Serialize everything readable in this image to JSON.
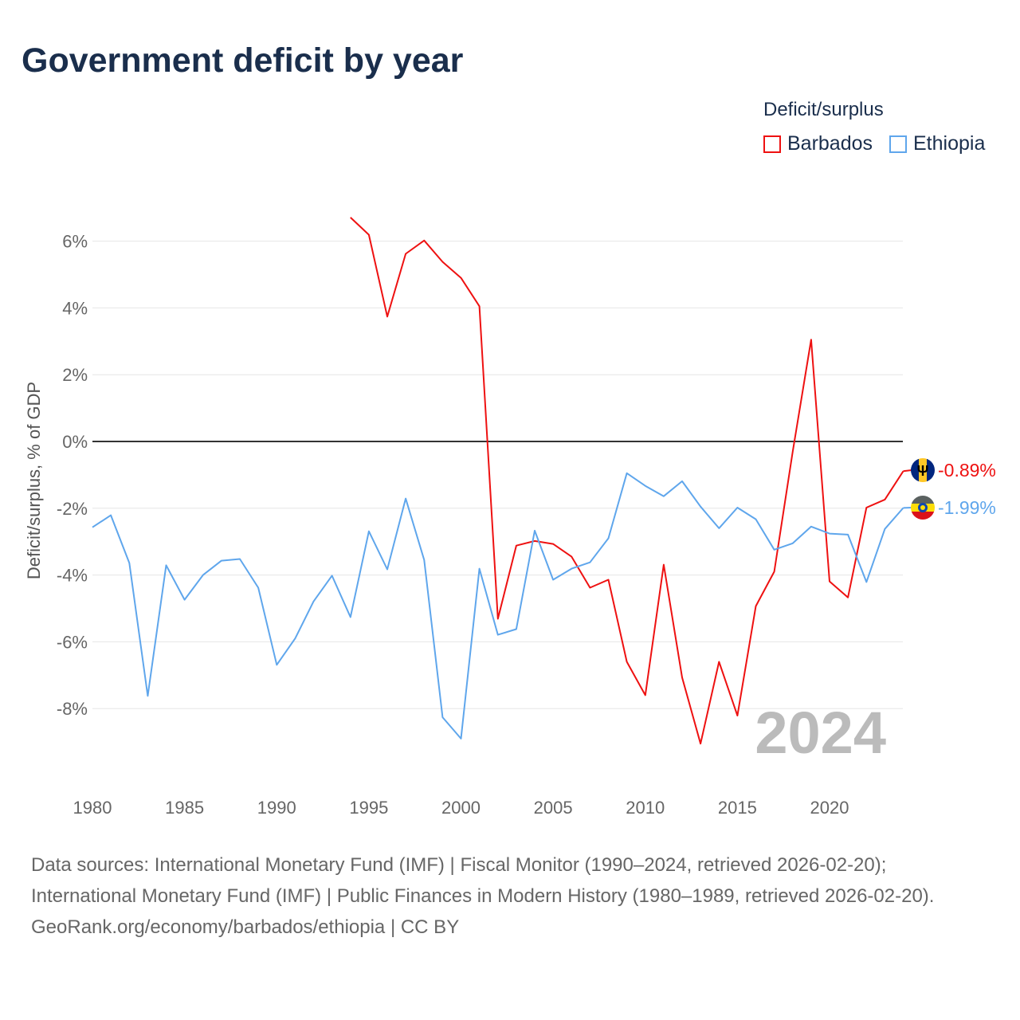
{
  "chart_data": {
    "type": "line",
    "title": "Government deficit by year",
    "ylabel": "Deficit/surplus, % of GDP",
    "xlabel": "",
    "xlim": [
      1980,
      2024
    ],
    "ylim": [
      -10,
      7
    ],
    "x_ticks": [
      1980,
      1985,
      1990,
      1995,
      2000,
      2005,
      2010,
      2015,
      2020
    ],
    "y_ticks": [
      6,
      4,
      2,
      0,
      -2,
      -4,
      -6,
      -8
    ],
    "y_tick_labels": [
      "6%",
      "4%",
      "2%",
      "0%",
      "-2%",
      "-4%",
      "-6%",
      "-8%"
    ],
    "x_tick_labels": [
      "1980",
      "1985",
      "1990",
      "1995",
      "2000",
      "2005",
      "2010",
      "2015",
      "2020"
    ],
    "grid": true,
    "legend_title": "Deficit/surplus",
    "legend_position": "top-right",
    "year_watermark": "2024",
    "series": [
      {
        "name": "Barbados",
        "color": "#ee1111",
        "end_label": "-0.89%",
        "start_year": 1994,
        "values": [
          6.71,
          6.19,
          3.74,
          5.62,
          6.02,
          5.38,
          4.9,
          4.05,
          -5.31,
          -3.12,
          -2.98,
          -3.07,
          -3.45,
          -4.38,
          -4.14,
          -6.6,
          -7.6,
          -3.69,
          -7.07,
          -9.05,
          -6.6,
          -8.21,
          -4.93,
          -3.9,
          -0.3,
          3.05,
          -4.19,
          -4.67,
          -1.98,
          -1.74,
          -0.89
        ]
      },
      {
        "name": "Ethiopia",
        "color": "#5fa6ec",
        "end_label": "-1.99%",
        "start_year": 1980,
        "values": [
          -2.57,
          -2.21,
          -3.64,
          -7.62,
          -3.71,
          -4.74,
          -4.0,
          -3.57,
          -3.52,
          -4.38,
          -6.69,
          -5.9,
          -4.79,
          -4.02,
          -5.26,
          -2.69,
          -3.83,
          -1.71,
          -3.55,
          -8.26,
          -8.9,
          -3.81,
          -5.79,
          -5.62,
          -2.67,
          -4.14,
          -3.81,
          -3.62,
          -2.9,
          -0.95,
          -1.33,
          -1.64,
          -1.19,
          -1.95,
          -2.6,
          -1.98,
          -2.33,
          -3.24,
          -3.05,
          -2.55,
          -2.76,
          -2.79,
          -4.21,
          -2.62,
          -1.99
        ]
      }
    ]
  },
  "footer": {
    "sources": "Data sources: International Monetary Fund (IMF) | Fiscal Monitor (1990–2024, retrieved 2026-02-20); International Monetary Fund (IMF) | Public Finances in Modern History (1980–1989, retrieved 2026-02-20).",
    "credit": "GeoRank.org/economy/barbados/ethiopia | CC BY"
  }
}
